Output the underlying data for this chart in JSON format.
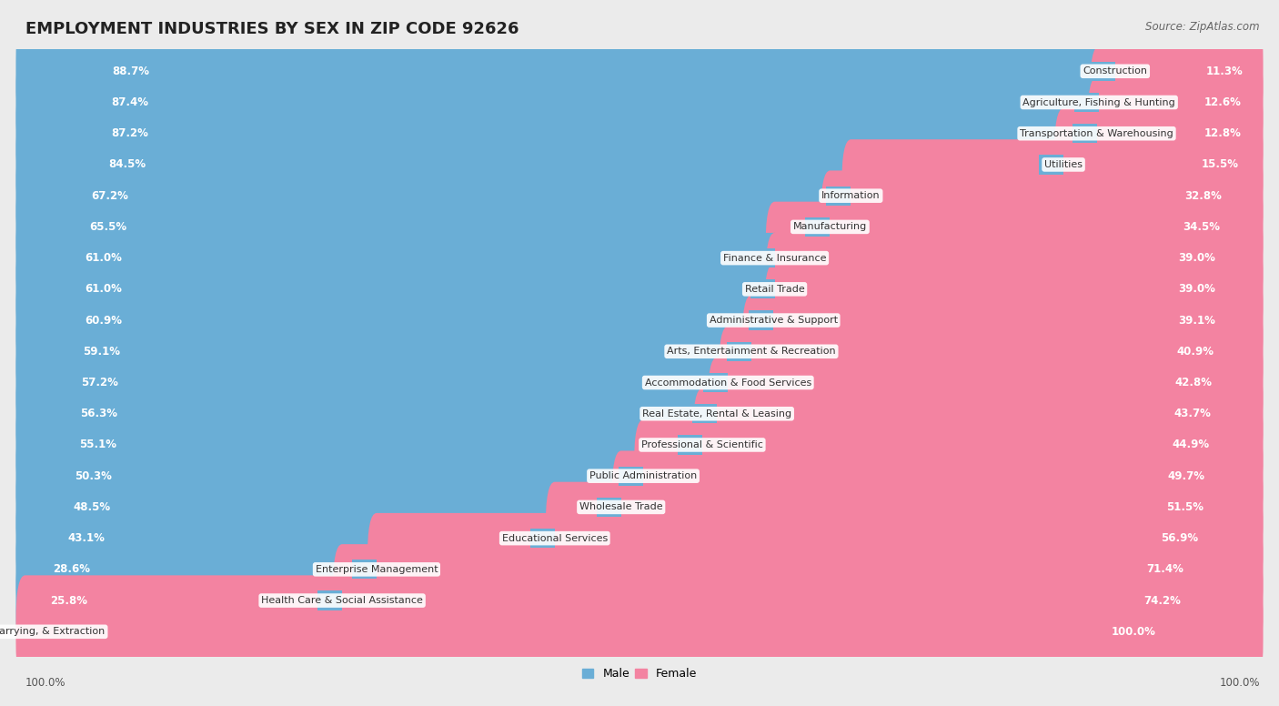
{
  "title": "EMPLOYMENT INDUSTRIES BY SEX IN ZIP CODE 92626",
  "source": "Source: ZipAtlas.com",
  "categories": [
    "Construction",
    "Agriculture, Fishing & Hunting",
    "Transportation & Warehousing",
    "Utilities",
    "Information",
    "Manufacturing",
    "Finance & Insurance",
    "Retail Trade",
    "Administrative & Support",
    "Arts, Entertainment & Recreation",
    "Accommodation & Food Services",
    "Real Estate, Rental & Leasing",
    "Professional & Scientific",
    "Public Administration",
    "Wholesale Trade",
    "Educational Services",
    "Enterprise Management",
    "Health Care & Social Assistance",
    "Mining, Quarrying, & Extraction"
  ],
  "male": [
    88.7,
    87.4,
    87.2,
    84.5,
    67.2,
    65.5,
    61.0,
    61.0,
    60.9,
    59.1,
    57.2,
    56.3,
    55.1,
    50.3,
    48.5,
    43.1,
    28.6,
    25.8,
    0.0
  ],
  "female": [
    11.3,
    12.6,
    12.8,
    15.5,
    32.8,
    34.5,
    39.0,
    39.0,
    39.1,
    40.9,
    42.8,
    43.7,
    44.9,
    49.7,
    51.5,
    56.9,
    71.4,
    74.2,
    100.0
  ],
  "male_color": "#6aaed6",
  "female_color": "#f383a1",
  "bg_color": "#ebebeb",
  "row_bg": "#ffffff",
  "bar_height": 0.62,
  "title_fontsize": 13,
  "label_fontsize": 8.5,
  "category_fontsize": 8.0,
  "legend_fontsize": 9,
  "total_width": 100.0
}
